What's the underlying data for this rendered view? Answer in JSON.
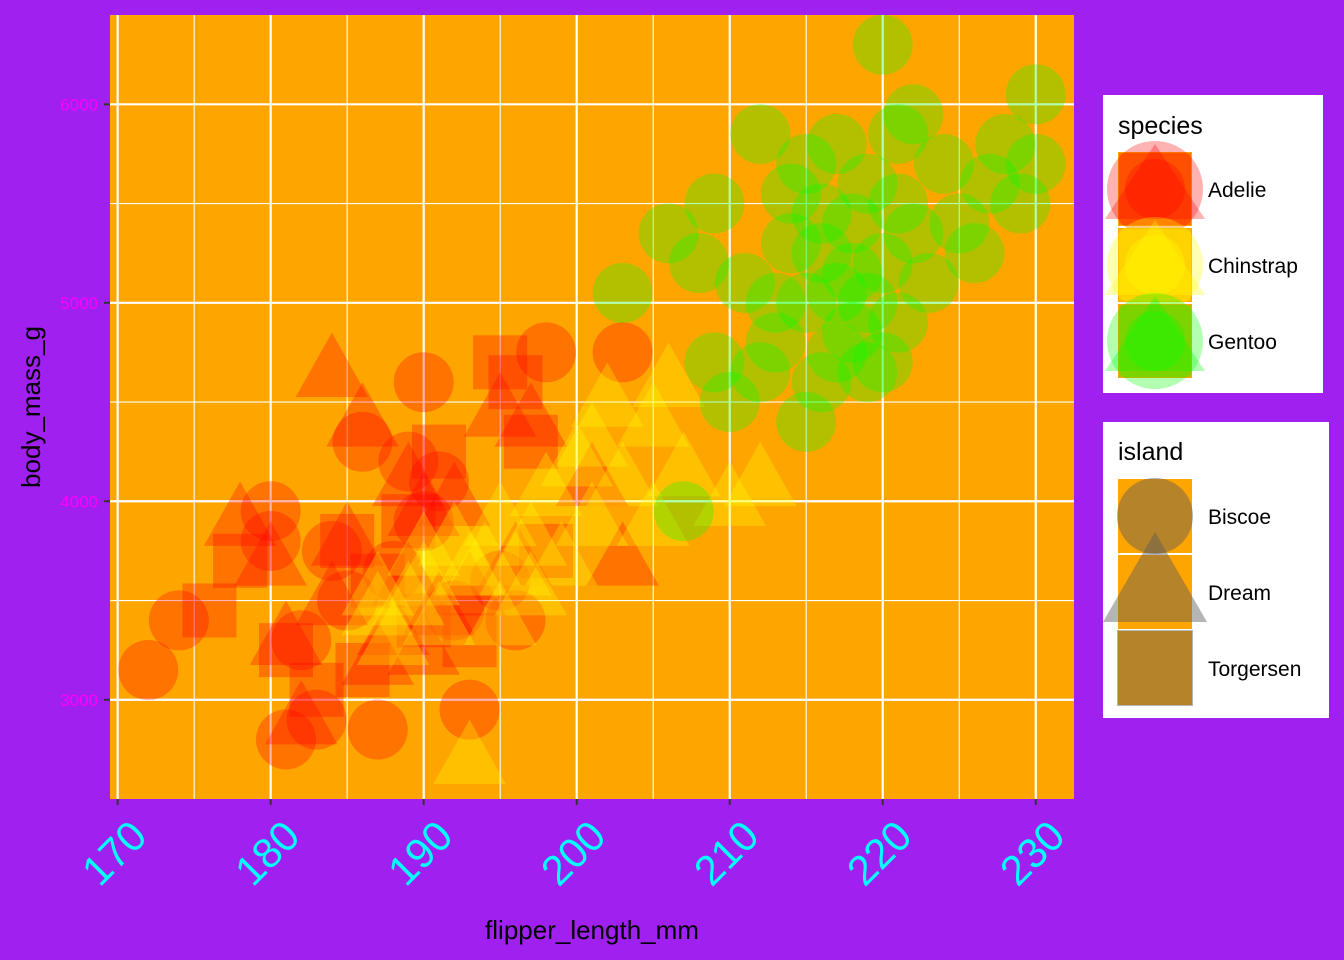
{
  "chart_data": {
    "type": "scatter",
    "title": "",
    "xlabel": "flipper_length_mm",
    "ylabel": "body_mass_g",
    "xlim": [
      169.5,
      232.5
    ],
    "ylim": [
      2500,
      6450
    ],
    "xticks": [
      170,
      180,
      190,
      200,
      210,
      220,
      230
    ],
    "yticks": [
      3000,
      4000,
      5000,
      6000
    ],
    "grid": true,
    "legend_position": "right",
    "colors": {
      "page_background": "#a020f0",
      "panel_background": "#ffa500",
      "grid": "#ffffff",
      "x_tick_labels": "#00ffff",
      "y_tick_labels": "#ff00ff"
    },
    "color_legend": {
      "title": "species",
      "entries": [
        {
          "label": "Adelie",
          "color": "#ff0000"
        },
        {
          "label": "Chinstrap",
          "color": "#ffff00"
        },
        {
          "label": "Gentoo",
          "color": "#00ff00"
        }
      ]
    },
    "shape_legend": {
      "title": "island",
      "entries": [
        {
          "label": "Biscoe",
          "shape": "circle"
        },
        {
          "label": "Dream",
          "shape": "triangle"
        },
        {
          "label": "Torgersen",
          "shape": "square"
        }
      ]
    },
    "series": [
      {
        "species": "Adelie",
        "island": "Biscoe",
        "x": [
          172,
          174,
          180,
          180,
          181,
          182,
          183,
          184,
          185,
          186,
          187,
          188,
          189,
          190,
          190,
          191,
          192,
          193,
          195,
          196,
          198,
          203
        ],
        "y": [
          3150,
          3400,
          3950,
          3800,
          2800,
          3300,
          2900,
          3750,
          3500,
          4300,
          2850,
          3650,
          4200,
          4600,
          3900,
          4100,
          3450,
          2950,
          3600,
          3400,
          4750,
          4750
        ]
      },
      {
        "species": "Adelie",
        "island": "Dream",
        "x": [
          178,
          180,
          181,
          182,
          184,
          184,
          185,
          186,
          187,
          188,
          189,
          189,
          190,
          190,
          191,
          192,
          193,
          195,
          196,
          197,
          201,
          203
        ],
        "y": [
          3900,
          3700,
          3300,
          2900,
          4650,
          3500,
          3800,
          4400,
          3200,
          3350,
          3600,
          4100,
          3950,
          3250,
          3450,
          4000,
          3550,
          4450,
          3700,
          4400,
          4100,
          3700
        ]
      },
      {
        "species": "Adelie",
        "island": "Torgersen",
        "x": [
          176,
          178,
          181,
          183,
          185,
          186,
          187,
          189,
          190,
          191,
          193,
          195,
          196,
          197,
          198
        ],
        "y": [
          3450,
          3700,
          3250,
          3050,
          3800,
          3150,
          3600,
          3900,
          3400,
          4250,
          3300,
          4700,
          4600,
          4300,
          3750
        ]
      },
      {
        "species": "Chinstrap",
        "island": "Dream",
        "x": [
          187,
          187,
          188,
          189,
          190,
          190,
          191,
          192,
          193,
          193,
          194,
          195,
          195,
          196,
          197,
          197,
          198,
          199,
          200,
          201,
          201,
          202,
          203,
          205,
          205,
          206,
          207,
          210,
          212
        ],
        "y": [
          3450,
          3550,
          3300,
          3500,
          3600,
          3750,
          3400,
          3800,
          2700,
          3650,
          3700,
          3400,
          3900,
          3650,
          3800,
          3550,
          4050,
          3700,
          4200,
          3900,
          4300,
          4500,
          4100,
          3900,
          4400,
          4600,
          4150,
          4000,
          4100
        ]
      },
      {
        "species": "Gentoo",
        "island": "Biscoe",
        "x": [
          203,
          206,
          207,
          208,
          209,
          209,
          210,
          211,
          212,
          212,
          213,
          213,
          214,
          214,
          215,
          215,
          215,
          216,
          216,
          216,
          217,
          217,
          217,
          218,
          218,
          218,
          219,
          219,
          219,
          220,
          220,
          220,
          221,
          221,
          221,
          222,
          222,
          223,
          224,
          225,
          226,
          227,
          228,
          229,
          230,
          230
        ],
        "y": [
          5050,
          5350,
          3950,
          5200,
          5500,
          4700,
          4500,
          5100,
          5850,
          4650,
          5000,
          4800,
          5300,
          5550,
          4400,
          5000,
          5700,
          5250,
          4600,
          5450,
          5050,
          4750,
          5800,
          5400,
          4850,
          5150,
          5600,
          5000,
          4650,
          6300,
          5200,
          4700,
          5500,
          5850,
          4900,
          5350,
          5950,
          5100,
          5700,
          5400,
          5250,
          5600,
          5800,
          5500,
          5700,
          6050
        ]
      }
    ]
  }
}
